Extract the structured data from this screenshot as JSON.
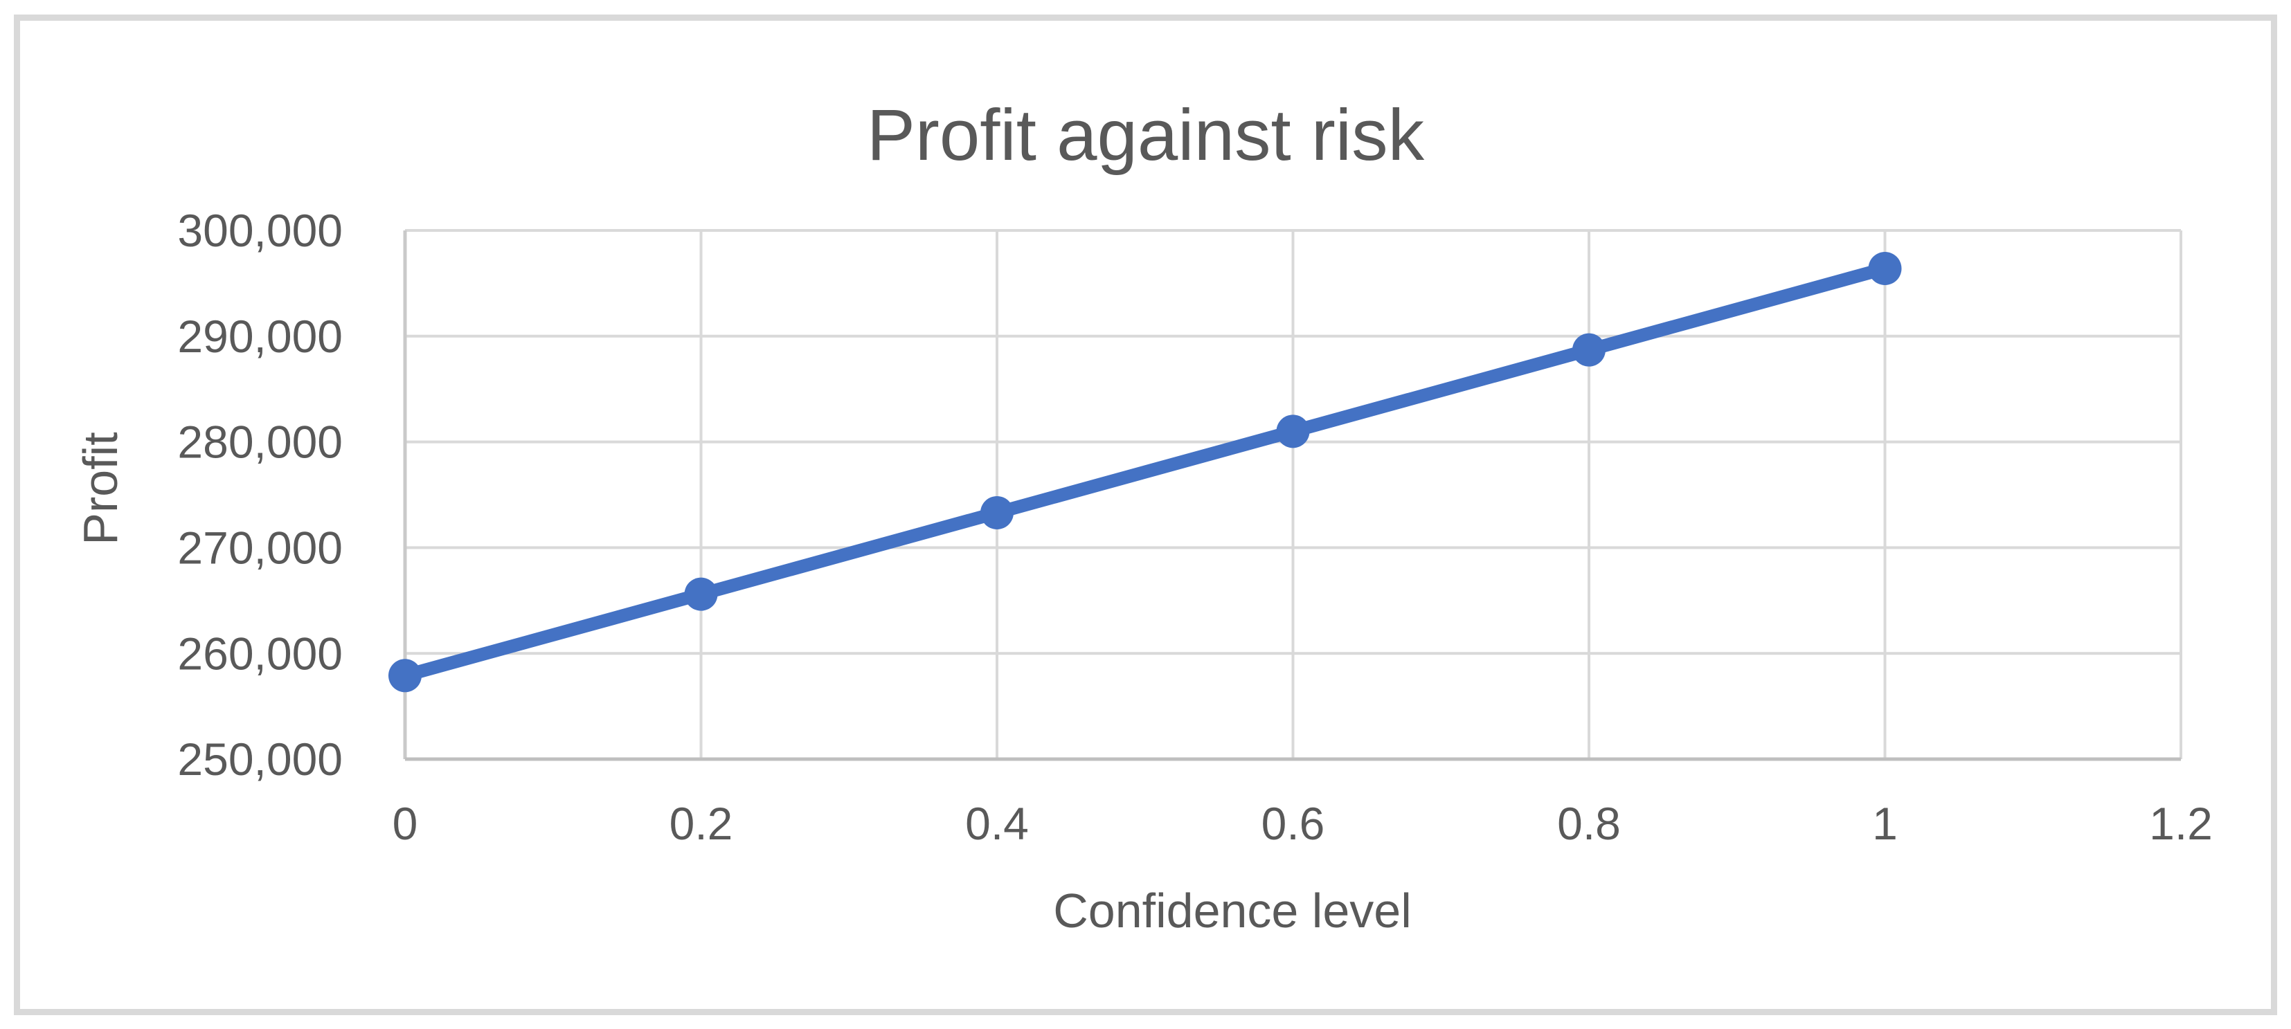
{
  "window": {
    "background": "#FFFFFF",
    "border_color": "#D9D9D9"
  },
  "chart_data": {
    "type": "line",
    "title": "Profit against risk",
    "xlabel": "Confidence level",
    "ylabel": "Profit",
    "x": [
      0,
      0.2,
      0.4,
      0.6,
      0.8,
      1
    ],
    "series": [
      {
        "name": "Profit",
        "values": [
          257900,
          265600,
          273300,
          281000,
          288700,
          296400
        ]
      }
    ],
    "xlim": [
      0,
      1.2
    ],
    "ylim": [
      250000,
      300000
    ],
    "xticks": [
      0,
      0.2,
      0.4,
      0.6,
      0.8,
      1,
      1.2
    ],
    "xtick_labels": [
      "0",
      "0.2",
      "0.4",
      "0.6",
      "0.8",
      "1",
      "1.2"
    ],
    "yticks": [
      250000,
      260000,
      270000,
      280000,
      290000,
      300000
    ],
    "ytick_labels": [
      "250,000",
      "260,000",
      "270,000",
      "280,000",
      "290,000",
      "300,000"
    ],
    "grid": "both",
    "legend": "none",
    "marker": "circle",
    "line_style": "solid",
    "colors": {
      "series": "#4472C4",
      "gridline": "#D9D9D9",
      "axis_x": "#BFBFBF",
      "axis_y": "#C9C9C9",
      "text": "#595959"
    }
  }
}
